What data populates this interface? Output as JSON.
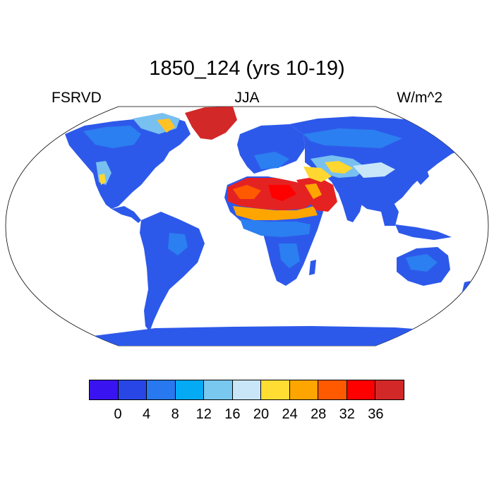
{
  "title": "1850_124 (yrs 10-19)",
  "left_label": "FSRVD",
  "center_label": "JJA",
  "right_label": "W/m^2",
  "colorbar": {
    "colors": [
      "#3a14f0",
      "#2846e6",
      "#2878ef",
      "#05aaf5",
      "#78c8f0",
      "#c8e6f8",
      "#ffdd33",
      "#ffa500",
      "#ff5a00",
      "#ff0000",
      "#d22828"
    ],
    "labels": [
      "0",
      "4",
      "8",
      "12",
      "16",
      "20",
      "24",
      "28",
      "32",
      "36"
    ]
  }
}
